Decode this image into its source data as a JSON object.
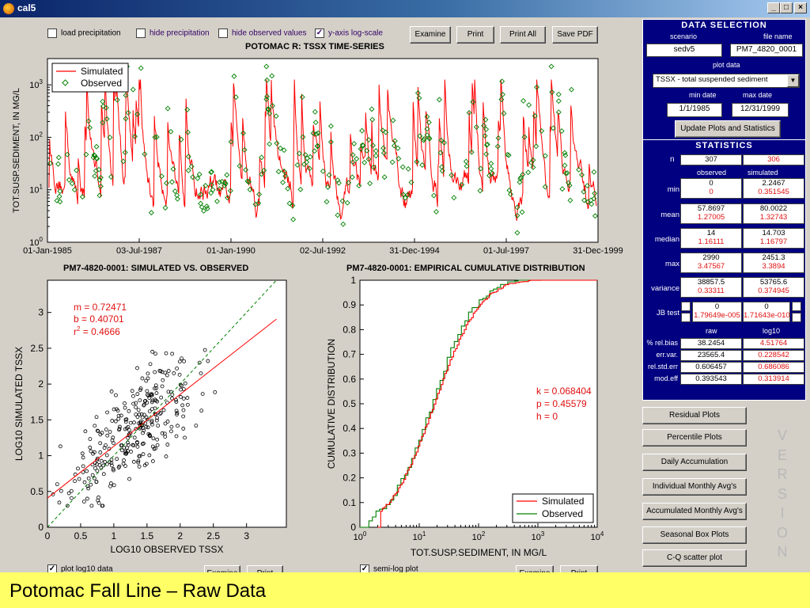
{
  "window": {
    "title": "cal5",
    "min_label": "_",
    "max_label": "□",
    "close_label": "×"
  },
  "toolbar": {
    "load_precip": {
      "label": "load precipitation",
      "checked": false
    },
    "hide_precip": {
      "label": "hide precipitation",
      "checked": false
    },
    "hide_observed": {
      "label": "hide observed values",
      "checked": false
    },
    "ylog": {
      "label": "y-axis log-scale",
      "checked": true
    },
    "examine_label": "Examine",
    "print_label": "Print",
    "print_all_label": "Print All",
    "save_pdf_label": "Save PDF"
  },
  "timeseries": {
    "title": "POTOMAC R: TSSX TIME-SERIES",
    "ylabel": "TOT.SUSP.SEDIMENT, IN MG/L",
    "x_ticks": [
      "01-Jan-1985",
      "03-Jul-1987",
      "01-Jan-1990",
      "02-Jul-1992",
      "31-Dec-1994",
      "01-Jul-1997",
      "31-Dec-1999"
    ],
    "y_ticks": [
      "10",
      "10",
      "10",
      "10"
    ],
    "y_exps": [
      "0",
      "1",
      "2",
      "3"
    ],
    "legend": [
      "Simulated",
      "Observed"
    ],
    "colors": {
      "simulated": "#ff0000",
      "observed": "#008000"
    }
  },
  "scatter": {
    "title": "PM7-4820-0001: SIMULATED VS. OBSERVED",
    "xlabel": "LOG10 OBSERVED TSSX",
    "ylabel": "LOG10 SIMULATED TSSX",
    "x_ticks": [
      "0",
      "0.5",
      "1",
      "1.5",
      "2",
      "2.5",
      "3"
    ],
    "y_ticks": [
      "0",
      "0.5",
      "1",
      "1.5",
      "2",
      "2.5",
      "3"
    ],
    "m_text": "m = 0.72471",
    "b_text": "b = 0.40701",
    "r2_prefix": "r",
    "r2_exp": "2",
    "r2_value": " = 0.4666",
    "checkbox": {
      "label": "plot log10 data",
      "checked": true
    },
    "examine_label": "Examine",
    "print_label": "Print"
  },
  "cdf": {
    "title": "PM7-4820-0001: EMPIRICAL CUMULATIVE DISTRIBUTION",
    "xlabel": "TOT.SUSP.SEDIMENT, IN MG/L",
    "ylabel": "CUMULATIVE DISTRIBUTION",
    "y_ticks": [
      "0",
      "0.1",
      "0.2",
      "0.3",
      "0.4",
      "0.5",
      "0.6",
      "0.7",
      "0.8",
      "0.9",
      "1"
    ],
    "x_ticks": [
      "10",
      "10",
      "10",
      "10",
      "10"
    ],
    "x_exps": [
      "0",
      "1",
      "2",
      "3",
      "4"
    ],
    "k_text": "k = 0.068404",
    "p_text": "p = 0.45579",
    "h_text": "h = 0",
    "legend": [
      "Simulated",
      "Observed"
    ],
    "checkbox": {
      "label": "semi-log plot",
      "checked": true
    },
    "examine_label": "Examine",
    "print_label": "Print"
  },
  "panel": {
    "header": "DATA SELECTION",
    "scenario_label": "scenario",
    "file_label": "file name",
    "scenario_value": "sedv5",
    "file_value": "PM7_4820_0001",
    "plot_data_label": "plot data",
    "plot_data_value": "TSSX  -  total suspended sediment",
    "min_date_label": "min date",
    "max_date_label": "max date",
    "min_date": "1/1/1985",
    "max_date": "12/31/1999",
    "update_label": "Update Plots and Statistics",
    "stats_header": "STATISTICS",
    "n_label": "n",
    "n_observed": "307",
    "n_simulated": "306",
    "observed_label": "observed",
    "simulated_label": "simulated",
    "rows": [
      {
        "label": "min",
        "obs_raw": "0",
        "obs_log": "0",
        "sim_raw": "2.2467",
        "sim_log": "0.351545"
      },
      {
        "label": "mean",
        "obs_raw": "57.8697",
        "obs_log": "1.27005",
        "sim_raw": "80.0022",
        "sim_log": "1.32743"
      },
      {
        "label": "median",
        "obs_raw": "14",
        "obs_log": "1.16111",
        "sim_raw": "14.703",
        "sim_log": "1.16797"
      },
      {
        "label": "max",
        "obs_raw": "2990",
        "obs_log": "3.47567",
        "sim_raw": "2451.3",
        "sim_log": "3.3894"
      },
      {
        "label": "variance",
        "obs_raw": "38857.5",
        "obs_log": "0.33311",
        "sim_raw": "53765.6",
        "sim_log": "0.374945"
      },
      {
        "label": "JB test",
        "obs_raw": "0",
        "obs_log": "1.79649e-005",
        "sim_raw": "0",
        "sim_log": "1.71643e-010"
      }
    ],
    "raw_label": "raw",
    "log10_label": "log10",
    "metrics": [
      {
        "label": "% rel.bias",
        "raw": "38.2454",
        "log": "4.51764"
      },
      {
        "label": "err.var.",
        "raw": "23565.4",
        "log": "0.228542"
      },
      {
        "label": "rel.std.err",
        "raw": "0.606457",
        "log": "0.686086"
      },
      {
        "label": "mod.eff",
        "raw": "0.393543",
        "log": "0.313914"
      }
    ]
  },
  "side_buttons": [
    "Residual Plots",
    "Percentile Plots",
    "Daily Accumulation",
    "Individual Monthly Avg's",
    "Accumulated Monthly Avg's",
    "Seasonal Box Plots",
    "C-Q scatter plot"
  ],
  "version_letters": [
    "V",
    "E",
    "R",
    "S",
    "I",
    "O",
    "N"
  ],
  "footer": {
    "caption": "Potomac Fall Line – Raw Data"
  }
}
